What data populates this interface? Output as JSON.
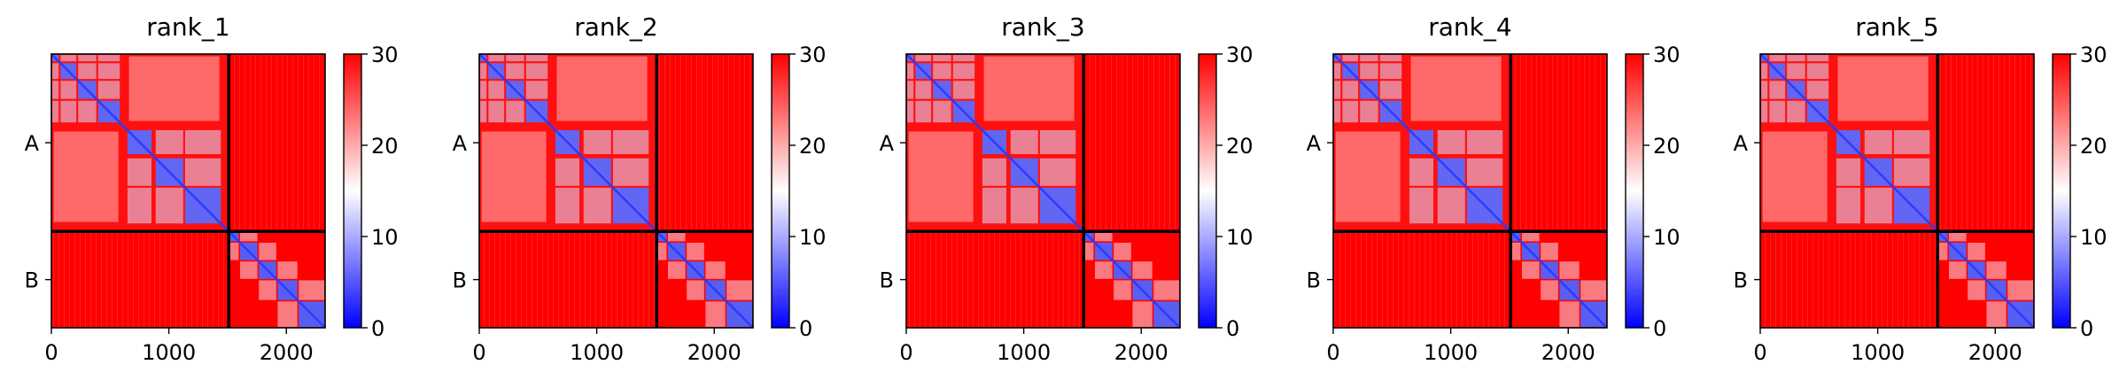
{
  "chart_data": [
    {
      "type": "heatmap",
      "title": "rank_1",
      "chains": [
        "A",
        "B"
      ],
      "chain_boundary": 1510,
      "length": 2330,
      "xticks": [
        0,
        1000,
        2000
      ],
      "colorbar": {
        "min": 0,
        "max": 30,
        "ticks": [
          0,
          10,
          20,
          30
        ],
        "colors": [
          "#0000ff",
          "#ffffff",
          "#ff0000"
        ]
      }
    },
    {
      "type": "heatmap",
      "title": "rank_2",
      "chains": [
        "A",
        "B"
      ],
      "chain_boundary": 1510,
      "length": 2330,
      "xticks": [
        0,
        1000,
        2000
      ],
      "colorbar": {
        "min": 0,
        "max": 30,
        "ticks": [
          0,
          10,
          20,
          30
        ],
        "colors": [
          "#0000ff",
          "#ffffff",
          "#ff0000"
        ]
      }
    },
    {
      "type": "heatmap",
      "title": "rank_3",
      "chains": [
        "A",
        "B"
      ],
      "chain_boundary": 1510,
      "length": 2330,
      "xticks": [
        0,
        1000,
        2000
      ],
      "colorbar": {
        "min": 0,
        "max": 30,
        "ticks": [
          0,
          10,
          20,
          30
        ],
        "colors": [
          "#0000ff",
          "#ffffff",
          "#ff0000"
        ]
      }
    },
    {
      "type": "heatmap",
      "title": "rank_4",
      "chains": [
        "A",
        "B"
      ],
      "chain_boundary": 1510,
      "length": 2330,
      "xticks": [
        0,
        1000,
        2000
      ],
      "colorbar": {
        "min": 0,
        "max": 30,
        "ticks": [
          0,
          10,
          20,
          30
        ],
        "colors": [
          "#0000ff",
          "#ffffff",
          "#ff0000"
        ]
      }
    },
    {
      "type": "heatmap",
      "title": "rank_5",
      "chains": [
        "A",
        "B"
      ],
      "chain_boundary": 1510,
      "length": 2330,
      "xticks": [
        0,
        1000,
        2000
      ],
      "colorbar": {
        "min": 0,
        "max": 30,
        "ticks": [
          0,
          10,
          20,
          30
        ],
        "colors": [
          "#0000ff",
          "#ffffff",
          "#ff0000"
        ]
      }
    }
  ]
}
